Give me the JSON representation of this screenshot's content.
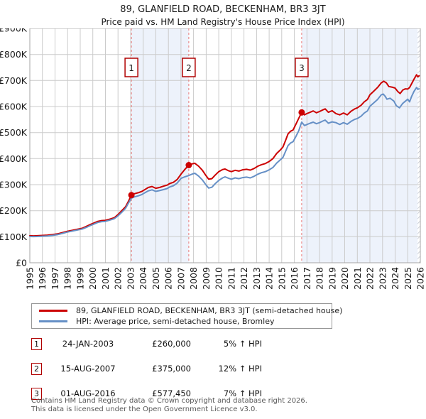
{
  "title": "89, GLANFIELD ROAD, BECKENHAM, BR3 3JT",
  "subtitle": "Price paid vs. HM Land Registry's House Price Index (HPI)",
  "legend": [
    {
      "label": "89, GLANFIELD ROAD, BECKENHAM, BR3 3JT (semi-detached house)",
      "color": "#cc0000"
    },
    {
      "label": "HPI: Average price, semi-detached house, Bromley",
      "color": "#6690c6"
    }
  ],
  "transactions": [
    {
      "num": "1",
      "date": "24-JAN-2003",
      "price": "£260,000",
      "hpi": "5% ↑ HPI"
    },
    {
      "num": "2",
      "date": "15-AUG-2007",
      "price": "£375,000",
      "hpi": "12% ↑ HPI"
    },
    {
      "num": "3",
      "date": "01-AUG-2016",
      "price": "£577,450",
      "hpi": "7% ↑ HPI"
    }
  ],
  "footer": {
    "line1": "Contains HM Land Registry data © Crown copyright and database right 2026.",
    "line2": "This data is licensed under the Open Government Licence v3.0."
  },
  "chart_data": {
    "type": "line",
    "title": "89, GLANFIELD ROAD, BECKENHAM, BR3 3JT — Price paid vs. HPI",
    "xlabel": "",
    "ylabel": "",
    "x_range": [
      1995,
      2026
    ],
    "ylim": [
      0,
      900000
    ],
    "grid": true,
    "legend_position": "below",
    "x_ticks": [
      1995,
      1996,
      1997,
      1998,
      1999,
      2000,
      2001,
      2002,
      2003,
      2004,
      2005,
      2006,
      2007,
      2008,
      2009,
      2010,
      2011,
      2012,
      2013,
      2014,
      2015,
      2016,
      2017,
      2018,
      2019,
      2020,
      2021,
      2022,
      2023,
      2024,
      2025,
      2026
    ],
    "y_ticks": [
      {
        "label": "£900K",
        "value": 900000
      },
      {
        "label": "£800K",
        "value": 800000
      },
      {
        "label": "£700K",
        "value": 700000
      },
      {
        "label": "£600K",
        "value": 600000
      },
      {
        "label": "£500K",
        "value": 500000
      },
      {
        "label": "£400K",
        "value": 400000
      },
      {
        "label": "£300K",
        "value": 300000
      },
      {
        "label": "£200K",
        "value": 200000
      },
      {
        "label": "£100K",
        "value": 100000
      },
      {
        "label": "£0",
        "value": 0
      }
    ],
    "colors": {
      "price_line": "#cc0000",
      "hpi_line": "#6690c6",
      "band": "#edf2fb",
      "dashed": "#e87878",
      "marker_border": "#b00000",
      "marker_text": "#1a1a1a",
      "grid": "#cbcbcb",
      "plot_border": "#a6a6a6",
      "tick_text": "#1a1a1a",
      "hatch": "#b8bcc8"
    },
    "shaded_bands": [
      [
        2003.065,
        2007.62
      ],
      [
        2016.58,
        2026
      ]
    ],
    "hatch_band": [
      2025.78,
      2026
    ],
    "sale_markers": [
      {
        "num": "1",
        "year": 2003.065,
        "value": 260000
      },
      {
        "num": "2",
        "year": 2007.62,
        "value": 375000
      },
      {
        "num": "3",
        "year": 2016.58,
        "value": 577450
      }
    ],
    "series": [
      {
        "name": "89, GLANFIELD ROAD, BECKENHAM, BR3 3JT (semi-detached house)",
        "color": "#cc0000",
        "points": [
          [
            1995.0,
            104000
          ],
          [
            1995.3,
            103500
          ],
          [
            1995.6,
            104000
          ],
          [
            1996.0,
            105000
          ],
          [
            1996.4,
            106000
          ],
          [
            1996.8,
            108000
          ],
          [
            1997.2,
            111000
          ],
          [
            1997.6,
            116000
          ],
          [
            1998.0,
            121000
          ],
          [
            1998.4,
            125000
          ],
          [
            1998.8,
            129000
          ],
          [
            1999.2,
            133000
          ],
          [
            1999.5,
            140000
          ],
          [
            1999.8,
            147000
          ],
          [
            2000.1,
            153000
          ],
          [
            2000.4,
            159000
          ],
          [
            2000.7,
            162000
          ],
          [
            2001.0,
            163000
          ],
          [
            2001.3,
            167000
          ],
          [
            2001.7,
            173000
          ],
          [
            2002.0,
            185000
          ],
          [
            2002.3,
            200000
          ],
          [
            2002.6,
            215000
          ],
          [
            2002.85,
            238000
          ],
          [
            2003.065,
            260000
          ],
          [
            2003.3,
            265000
          ],
          [
            2003.6,
            269000
          ],
          [
            2003.9,
            274000
          ],
          [
            2004.1,
            280000
          ],
          [
            2004.4,
            289000
          ],
          [
            2004.7,
            293000
          ],
          [
            2005.0,
            286000
          ],
          [
            2005.3,
            289000
          ],
          [
            2005.6,
            294000
          ],
          [
            2005.9,
            298000
          ],
          [
            2006.1,
            304000
          ],
          [
            2006.4,
            309000
          ],
          [
            2006.7,
            320000
          ],
          [
            2007.0,
            340000
          ],
          [
            2007.3,
            358000
          ],
          [
            2007.62,
            375000
          ],
          [
            2007.9,
            380000
          ],
          [
            2008.1,
            382000
          ],
          [
            2008.4,
            371000
          ],
          [
            2008.7,
            355000
          ],
          [
            2008.95,
            337000
          ],
          [
            2009.2,
            321000
          ],
          [
            2009.45,
            323000
          ],
          [
            2009.7,
            336000
          ],
          [
            2010.0,
            350000
          ],
          [
            2010.3,
            358000
          ],
          [
            2010.5,
            360000
          ],
          [
            2010.8,
            353000
          ],
          [
            2011.0,
            350000
          ],
          [
            2011.3,
            355000
          ],
          [
            2011.6,
            352000
          ],
          [
            2011.9,
            357000
          ],
          [
            2012.2,
            359000
          ],
          [
            2012.5,
            356000
          ],
          [
            2012.8,
            362000
          ],
          [
            2013.1,
            371000
          ],
          [
            2013.4,
            377000
          ],
          [
            2013.7,
            381000
          ],
          [
            2014.0,
            389000
          ],
          [
            2014.3,
            400000
          ],
          [
            2014.6,
            420000
          ],
          [
            2014.9,
            434000
          ],
          [
            2015.1,
            445000
          ],
          [
            2015.3,
            470000
          ],
          [
            2015.5,
            495000
          ],
          [
            2015.7,
            505000
          ],
          [
            2015.9,
            510000
          ],
          [
            2016.1,
            530000
          ],
          [
            2016.35,
            555000
          ],
          [
            2016.58,
            577450
          ],
          [
            2016.8,
            568000
          ],
          [
            2017.0,
            573000
          ],
          [
            2017.25,
            578000
          ],
          [
            2017.5,
            583000
          ],
          [
            2017.75,
            576000
          ],
          [
            2018.0,
            581000
          ],
          [
            2018.25,
            587000
          ],
          [
            2018.45,
            591000
          ],
          [
            2018.7,
            578000
          ],
          [
            2019.0,
            584000
          ],
          [
            2019.3,
            573000
          ],
          [
            2019.6,
            568000
          ],
          [
            2019.9,
            575000
          ],
          [
            2020.2,
            568000
          ],
          [
            2020.5,
            582000
          ],
          [
            2020.8,
            591000
          ],
          [
            2021.0,
            595000
          ],
          [
            2021.3,
            605000
          ],
          [
            2021.55,
            618000
          ],
          [
            2021.8,
            627000
          ],
          [
            2022.0,
            645000
          ],
          [
            2022.3,
            659000
          ],
          [
            2022.6,
            673000
          ],
          [
            2022.9,
            691000
          ],
          [
            2023.1,
            697000
          ],
          [
            2023.3,
            691000
          ],
          [
            2023.5,
            677000
          ],
          [
            2023.8,
            674000
          ],
          [
            2024.0,
            671000
          ],
          [
            2024.2,
            658000
          ],
          [
            2024.4,
            650000
          ],
          [
            2024.6,
            663000
          ],
          [
            2024.8,
            668000
          ],
          [
            2025.0,
            667000
          ],
          [
            2025.15,
            673000
          ],
          [
            2025.3,
            687000
          ],
          [
            2025.5,
            705000
          ],
          [
            2025.7,
            722000
          ],
          [
            2025.8,
            714000
          ],
          [
            2025.9,
            718000
          ]
        ]
      },
      {
        "name": "HPI: Average price, semi-detached house, Bromley",
        "color": "#6690c6",
        "points": [
          [
            1995.0,
            101000
          ],
          [
            1995.3,
            100500
          ],
          [
            1995.6,
            101000
          ],
          [
            1996.0,
            102000
          ],
          [
            1996.4,
            103000
          ],
          [
            1996.8,
            105000
          ],
          [
            1997.2,
            108000
          ],
          [
            1997.6,
            113000
          ],
          [
            1998.0,
            118000
          ],
          [
            1998.4,
            122000
          ],
          [
            1998.8,
            126000
          ],
          [
            1999.2,
            130000
          ],
          [
            1999.5,
            136000
          ],
          [
            1999.8,
            143000
          ],
          [
            2000.1,
            149000
          ],
          [
            2000.4,
            155000
          ],
          [
            2000.7,
            158000
          ],
          [
            2001.0,
            159000
          ],
          [
            2001.3,
            163000
          ],
          [
            2001.7,
            169000
          ],
          [
            2002.0,
            180000
          ],
          [
            2002.3,
            194000
          ],
          [
            2002.6,
            209000
          ],
          [
            2002.85,
            231000
          ],
          [
            2003.065,
            248000
          ],
          [
            2003.3,
            253000
          ],
          [
            2003.6,
            257000
          ],
          [
            2003.9,
            262000
          ],
          [
            2004.1,
            268000
          ],
          [
            2004.4,
            276000
          ],
          [
            2004.7,
            280000
          ],
          [
            2005.0,
            274000
          ],
          [
            2005.3,
            277000
          ],
          [
            2005.6,
            281000
          ],
          [
            2005.9,
            285000
          ],
          [
            2006.1,
            291000
          ],
          [
            2006.4,
            296000
          ],
          [
            2006.7,
            306000
          ],
          [
            2007.0,
            324000
          ],
          [
            2007.3,
            330000
          ],
          [
            2007.62,
            335000
          ],
          [
            2007.9,
            341000
          ],
          [
            2008.1,
            344000
          ],
          [
            2008.4,
            333000
          ],
          [
            2008.7,
            318000
          ],
          [
            2008.95,
            301000
          ],
          [
            2009.2,
            287000
          ],
          [
            2009.45,
            290000
          ],
          [
            2009.7,
            303000
          ],
          [
            2010.0,
            316000
          ],
          [
            2010.3,
            326000
          ],
          [
            2010.5,
            330000
          ],
          [
            2010.8,
            324000
          ],
          [
            2011.0,
            321000
          ],
          [
            2011.3,
            326000
          ],
          [
            2011.6,
            323000
          ],
          [
            2011.9,
            327000
          ],
          [
            2012.2,
            329000
          ],
          [
            2012.5,
            326000
          ],
          [
            2012.8,
            332000
          ],
          [
            2013.1,
            340000
          ],
          [
            2013.4,
            346000
          ],
          [
            2013.7,
            350000
          ],
          [
            2014.0,
            357000
          ],
          [
            2014.3,
            366000
          ],
          [
            2014.6,
            383000
          ],
          [
            2014.9,
            396000
          ],
          [
            2015.1,
            405000
          ],
          [
            2015.3,
            428000
          ],
          [
            2015.5,
            450000
          ],
          [
            2015.7,
            460000
          ],
          [
            2015.9,
            465000
          ],
          [
            2016.1,
            483000
          ],
          [
            2016.35,
            507000
          ],
          [
            2016.58,
            540000
          ],
          [
            2016.8,
            527000
          ],
          [
            2017.0,
            531000
          ],
          [
            2017.25,
            536000
          ],
          [
            2017.5,
            540000
          ],
          [
            2017.75,
            534000
          ],
          [
            2018.0,
            538000
          ],
          [
            2018.25,
            544000
          ],
          [
            2018.45,
            548000
          ],
          [
            2018.7,
            536000
          ],
          [
            2019.0,
            541000
          ],
          [
            2019.3,
            538000
          ],
          [
            2019.6,
            531000
          ],
          [
            2019.9,
            538000
          ],
          [
            2020.2,
            532000
          ],
          [
            2020.5,
            543000
          ],
          [
            2020.8,
            551000
          ],
          [
            2021.0,
            554000
          ],
          [
            2021.3,
            563000
          ],
          [
            2021.55,
            575000
          ],
          [
            2021.8,
            583000
          ],
          [
            2022.0,
            601000
          ],
          [
            2022.3,
            614000
          ],
          [
            2022.6,
            627000
          ],
          [
            2022.9,
            645000
          ],
          [
            2023.05,
            648000
          ],
          [
            2023.2,
            640000
          ],
          [
            2023.35,
            628000
          ],
          [
            2023.6,
            632000
          ],
          [
            2023.9,
            621000
          ],
          [
            2024.1,
            603000
          ],
          [
            2024.35,
            595000
          ],
          [
            2024.6,
            612000
          ],
          [
            2024.8,
            620000
          ],
          [
            2025.0,
            628000
          ],
          [
            2025.15,
            618000
          ],
          [
            2025.3,
            638000
          ],
          [
            2025.5,
            658000
          ],
          [
            2025.7,
            673000
          ],
          [
            2025.8,
            666000
          ],
          [
            2025.9,
            668000
          ]
        ]
      }
    ]
  }
}
